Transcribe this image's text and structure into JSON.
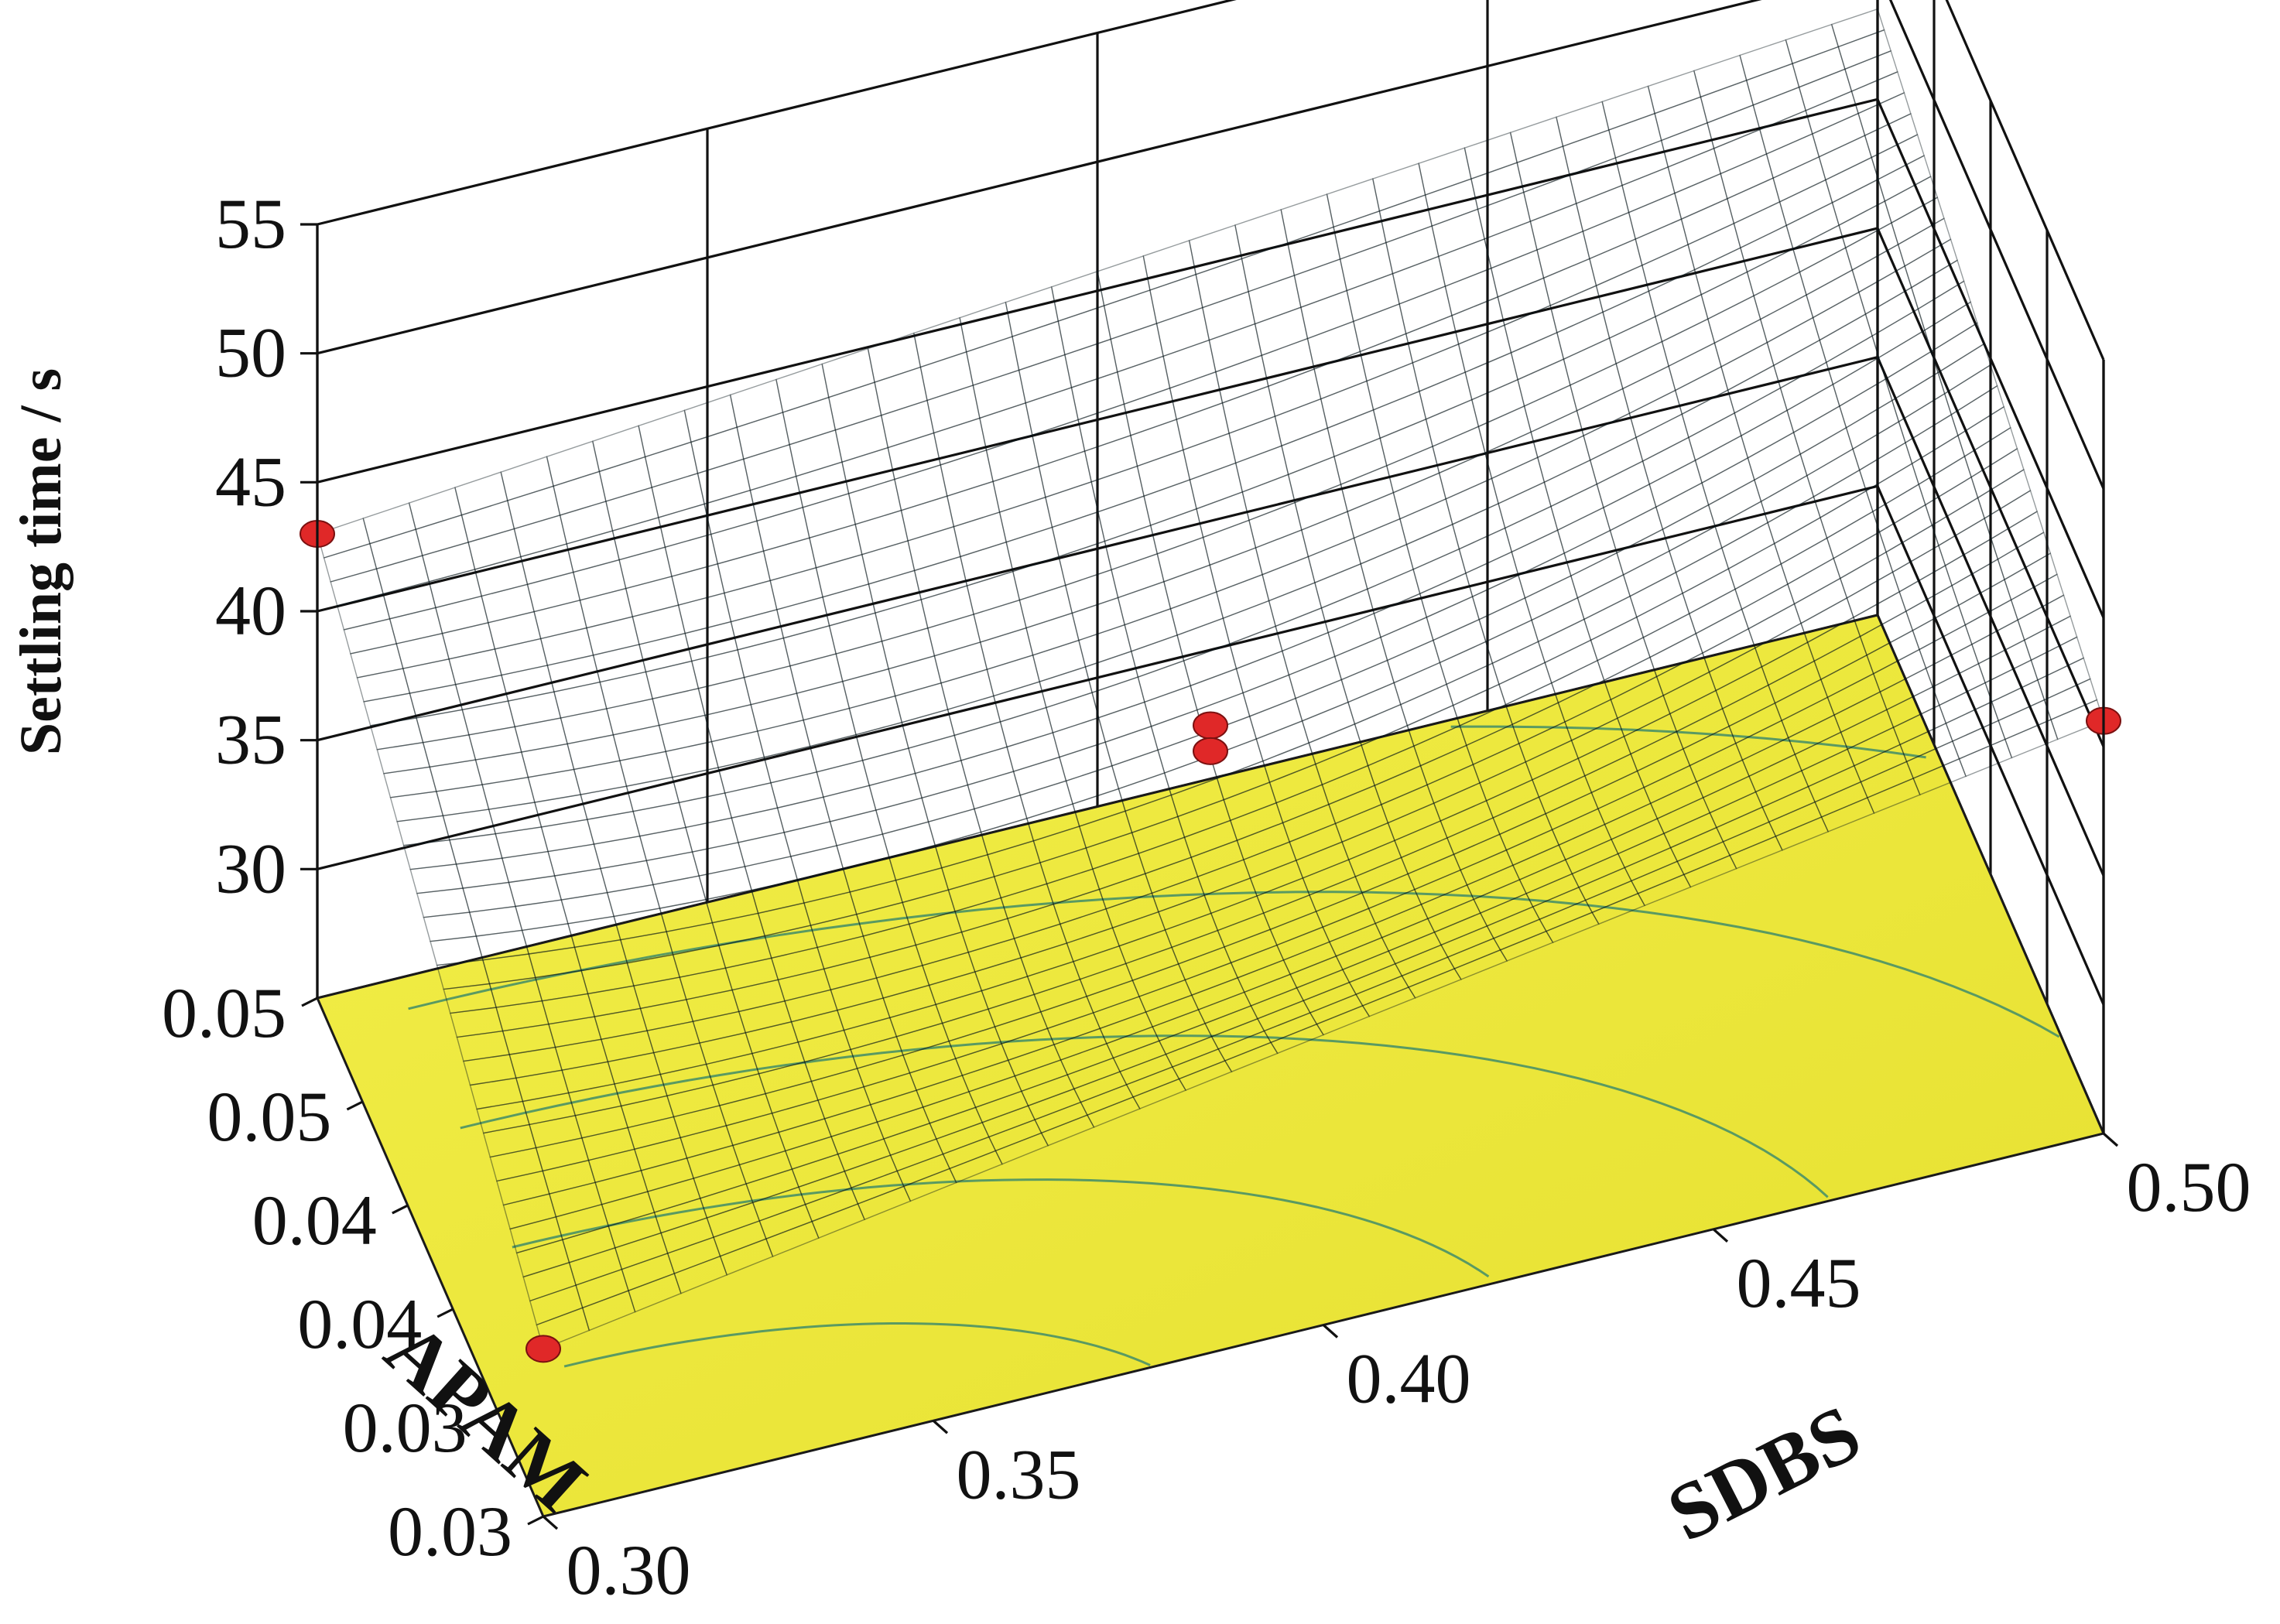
{
  "chart_data": {
    "type": "surface3d",
    "title": "",
    "zlabel": "Settling time / s",
    "xlabel": "SDBS",
    "ylabel": "APAM",
    "zlim": [
      25,
      55
    ],
    "z_ticks": [
      "30",
      "35",
      "40",
      "45",
      "50",
      "55"
    ],
    "x_ticks": [
      "0.30",
      "0.35",
      "0.40",
      "0.45",
      "0.50"
    ],
    "y_ticks": [
      "0.03",
      "0.03",
      "0.04",
      "0.04",
      "0.05",
      "0.05"
    ],
    "grid": true,
    "surface_colormap": [
      "#1a7a1e",
      "#2a9a6a",
      "#3a8ab8",
      "#2a4aa8"
    ],
    "floor_color": "#f0ec3a",
    "surface": {
      "corners": {
        "sdbs_0.30_apam_0.03": 31.5,
        "sdbs_0.30_apam_0.05": 43.0,
        "sdbs_0.50_apam_0.03": 41.0,
        "sdbs_0.50_apam_0.05": 48.5
      },
      "center": 37.0
    },
    "design_points": [
      {
        "sdbs": 0.3,
        "apam": 0.05,
        "time": 43.0
      },
      {
        "sdbs": 0.3,
        "apam": 0.03,
        "time": 31.5
      },
      {
        "sdbs": 0.5,
        "apam": 0.03,
        "time": 41.0
      },
      {
        "sdbs": 0.4,
        "apam": 0.04,
        "time": 38.2
      },
      {
        "sdbs": 0.4,
        "apam": 0.04,
        "time": 37.2
      }
    ]
  }
}
